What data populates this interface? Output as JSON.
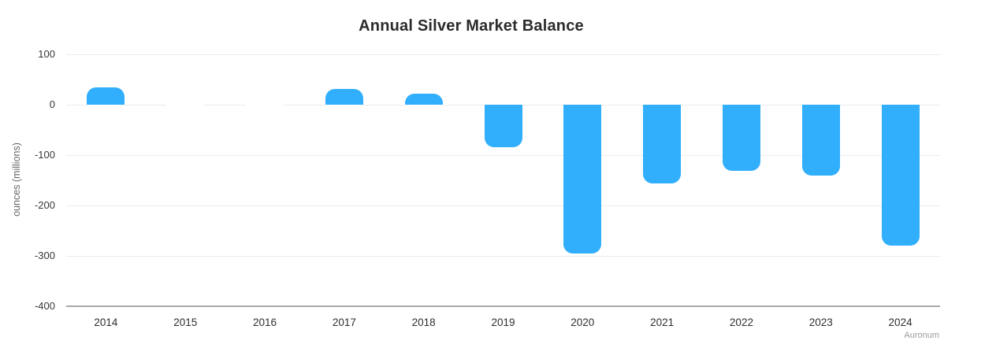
{
  "title": "Annual Silver Market Balance",
  "watermark": "Auronum",
  "colors": {
    "background": "#ffffff",
    "bar": "#31AEFC",
    "grid": "#ebebeb",
    "baseline_axis": "#a8a8a8",
    "title_text": "#2b2b2b",
    "tick_text": "#363636",
    "y_axis_title_text": "#666666",
    "watermark_text": "#9b9b9b"
  },
  "chart_data": {
    "type": "bar",
    "title": "Annual Silver Market Balance",
    "categories": [
      "2014",
      "2015",
      "2016",
      "2017",
      "2018",
      "2019",
      "2020",
      "2021",
      "2022",
      "2023",
      "2024"
    ],
    "values": [
      34,
      0,
      0,
      32,
      22,
      -85,
      -296,
      -156,
      -132,
      -141,
      -280
    ],
    "xlabel": "",
    "ylabel": "ounces (millions)",
    "ylim": [
      -400,
      100
    ],
    "yticks": [
      100,
      0,
      -100,
      -200,
      -300,
      -400
    ],
    "grid": true,
    "legend": false,
    "bar_color": "#31AEFC",
    "bar_corner_radius": "rounded outer ends"
  }
}
